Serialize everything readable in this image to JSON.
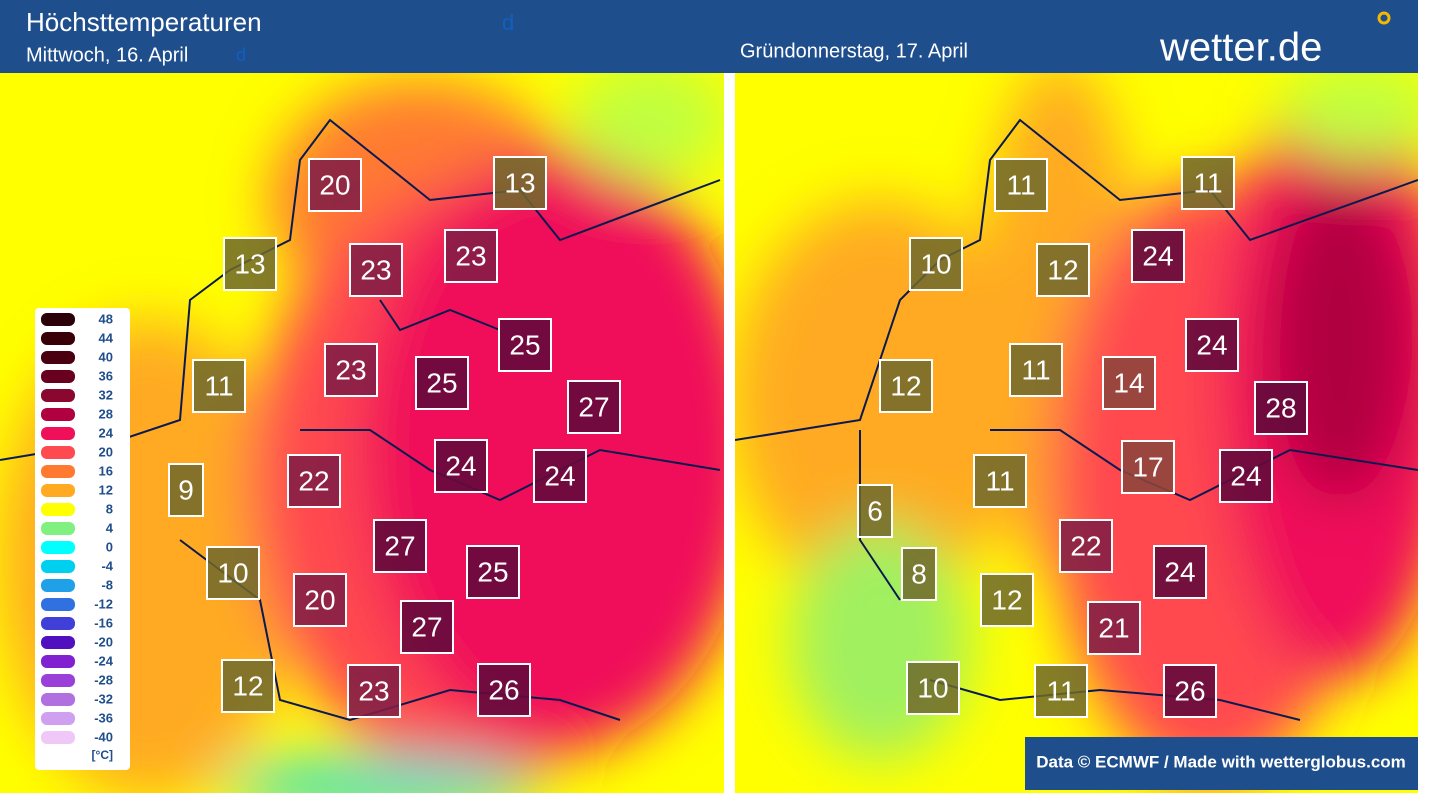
{
  "header": {
    "title": "Höchsttemperaturen",
    "left_date": "Mittwoch, 16. April",
    "right_date": "Gründonnerstag, 17. April",
    "logo": "wetter.de",
    "stray": [
      "d",
      "d"
    ]
  },
  "maps": [
    {
      "temperatures": [
        20,
        13,
        13,
        23,
        23,
        25,
        23,
        25,
        11,
        27,
        24,
        24,
        22,
        9,
        27,
        25,
        10,
        20,
        27,
        12,
        23,
        26
      ]
    },
    {
      "temperatures": [
        11,
        11,
        10,
        12,
        24,
        24,
        11,
        14,
        12,
        28,
        17,
        24,
        11,
        6,
        22,
        8,
        24,
        12,
        21,
        10,
        11,
        26
      ]
    }
  ],
  "legend": {
    "items": [
      {
        "value": 48,
        "color": "#2b0008"
      },
      {
        "value": 44,
        "color": "#3a0008"
      },
      {
        "value": 40,
        "color": "#4a0010"
      },
      {
        "value": 36,
        "color": "#6a0020"
      },
      {
        "value": 32,
        "color": "#8a0830"
      },
      {
        "value": 28,
        "color": "#b00040"
      },
      {
        "value": 24,
        "color": "#f0105a"
      },
      {
        "value": 20,
        "color": "#ff4a50"
      },
      {
        "value": 16,
        "color": "#ff7a30"
      },
      {
        "value": 12,
        "color": "#ffaa20"
      },
      {
        "value": 8,
        "color": "#ffff00"
      },
      {
        "value": 4,
        "color": "#80f080"
      },
      {
        "value": 0,
        "color": "#00ffff"
      },
      {
        "value": -4,
        "color": "#00d0f0"
      },
      {
        "value": -8,
        "color": "#20a0e8"
      },
      {
        "value": -12,
        "color": "#3070e0"
      },
      {
        "value": -16,
        "color": "#4040d8"
      },
      {
        "value": -20,
        "color": "#5010c0"
      },
      {
        "value": -24,
        "color": "#8020d0"
      },
      {
        "value": -28,
        "color": "#9a40d8"
      },
      {
        "value": -32,
        "color": "#b070e0"
      },
      {
        "value": -36,
        "color": "#d0a0f0"
      },
      {
        "value": -40,
        "color": "#f0c8f8"
      }
    ],
    "unit": "[°C]"
  },
  "credit": "Data © ECMWF / Made with wetterglobus.com"
}
